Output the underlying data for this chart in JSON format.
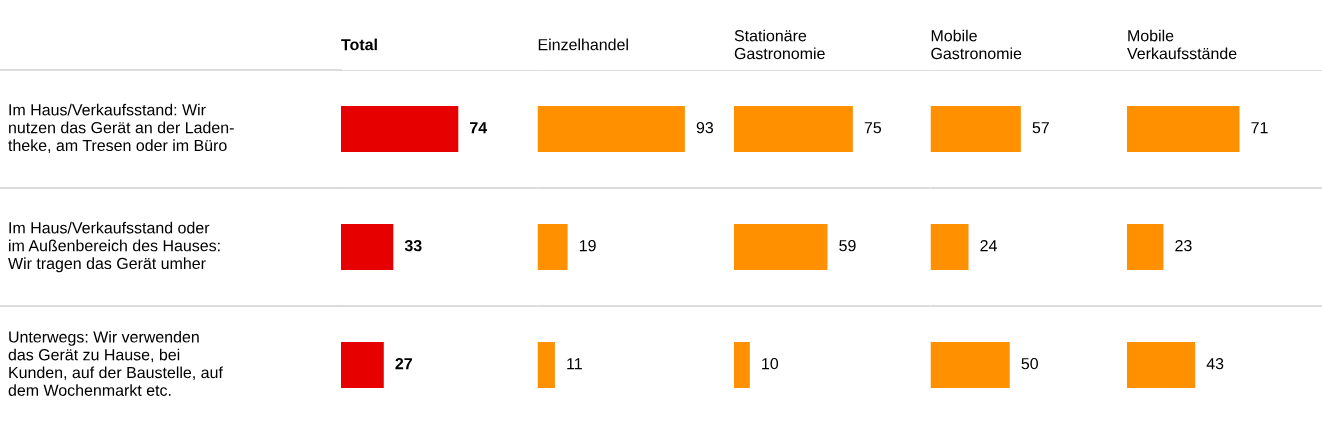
{
  "chart_data": [
    {
      "type": "bar",
      "orientation": "horizontal",
      "title": "Total",
      "categories": [
        "Im Haus/Verkaufsstand: Wir\nnutzen das Gerät an der Laden-\ntheke, am Tresen oder im Büro",
        "Im Haus/Verkaufsstand oder\nim Außenbereich des Hauses:\nWir tragen das Gerät umher",
        "Unterwegs: Wir verwenden\ndas Gerät zu Hause, bei\nKunden, auf der Baustelle, auf\ndem Wochenmarkt etc."
      ],
      "values": [
        74,
        33,
        27
      ],
      "color": "#e60000",
      "xlim": [
        0,
        124
      ],
      "data_labels": true,
      "tick_labels": "y"
    },
    {
      "type": "bar",
      "orientation": "horizontal",
      "title": "Einzelhandel",
      "categories": [
        null,
        null,
        null
      ],
      "values": [
        93,
        19,
        11
      ],
      "color": "#ff9100",
      "xlim": [
        0,
        124
      ],
      "data_labels": true,
      "tick_labels": false
    },
    {
      "type": "bar",
      "orientation": "horizontal",
      "title": "Stationäre\nGastronomie",
      "categories": [
        null,
        null,
        null
      ],
      "values": [
        75,
        59,
        10
      ],
      "color": "#ff9100",
      "xlim": [
        0,
        124
      ],
      "data_labels": true,
      "tick_labels": false
    },
    {
      "type": "bar",
      "orientation": "horizontal",
      "title": "Mobile\nGastronomie",
      "categories": [
        null,
        null,
        null
      ],
      "values": [
        57,
        24,
        50
      ],
      "color": "#ff9100",
      "xlim": [
        0,
        124
      ],
      "data_labels": true,
      "tick_labels": false
    },
    {
      "type": "bar",
      "orientation": "horizontal",
      "title": "Mobile\nVerkaufsstände",
      "categories": [
        null,
        null,
        null
      ],
      "values": [
        71,
        23,
        43
      ],
      "color": "#ff9100",
      "xlim": [
        0,
        124
      ],
      "data_labels": true,
      "tick_labels": false
    }
  ]
}
